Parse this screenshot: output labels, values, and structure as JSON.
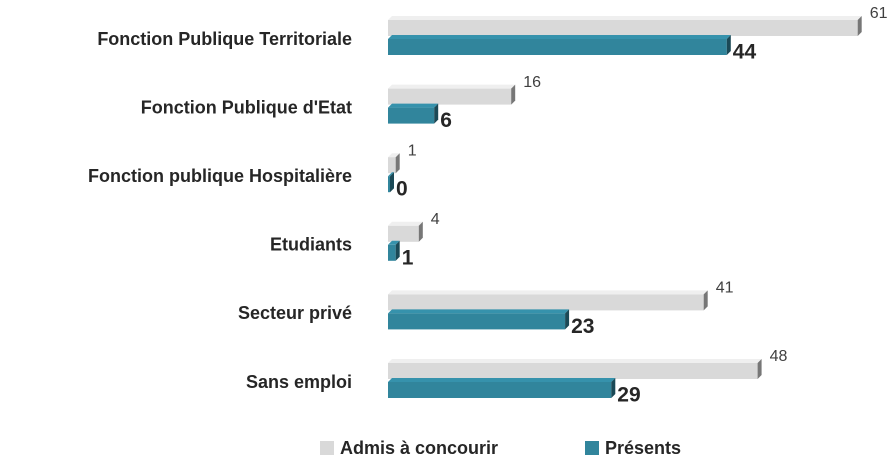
{
  "chart_data": {
    "type": "bar",
    "orientation": "horizontal",
    "categories": [
      "Fonction Publique Territoriale",
      "Fonction Publique d'Etat",
      "Fonction publique Hospitalière",
      "Etudiants",
      "Secteur privé",
      "Sans emploi"
    ],
    "series": [
      {
        "name": "Admis à concourir",
        "color": "#d9d9d9",
        "values": [
          61,
          16,
          1,
          4,
          41,
          48
        ]
      },
      {
        "name": "Présents",
        "color": "#31859c",
        "values": [
          44,
          6,
          0,
          1,
          23,
          29
        ]
      }
    ],
    "legend": "bottom"
  }
}
